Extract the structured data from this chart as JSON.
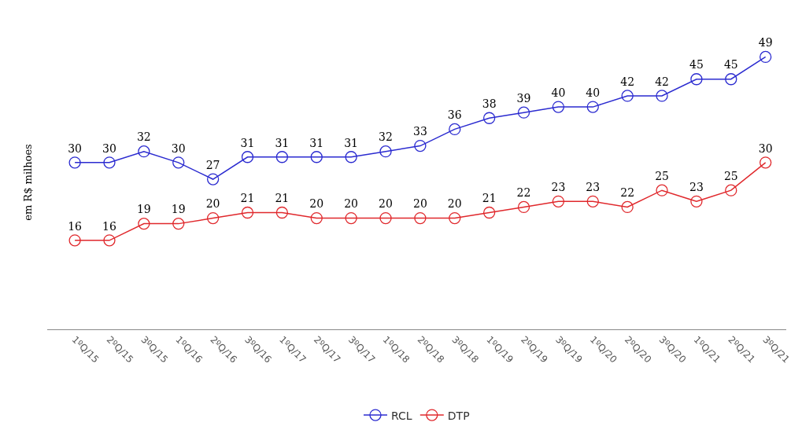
{
  "chart_data": {
    "type": "line",
    "ylabel": "em R$ milhoes",
    "categories": [
      "1ºQ/15",
      "2ºQ/15",
      "3ºQ/15",
      "1ºQ/16",
      "2ºQ/16",
      "3ºQ/16",
      "1ºQ/17",
      "2ºQ/17",
      "3ºQ/17",
      "1ºQ/18",
      "2ºQ/18",
      "3ºQ/18",
      "1ºQ/19",
      "2ºQ/19",
      "3ºQ/19",
      "1ºQ/20",
      "2ºQ/20",
      "3ºQ/20",
      "1ºQ/21",
      "2ºQ/21",
      "3ºQ/21"
    ],
    "series": [
      {
        "name": "RCL",
        "color": "#2b2bd0",
        "values": [
          30,
          30,
          32,
          30,
          27,
          31,
          31,
          31,
          31,
          32,
          33,
          36,
          38,
          39,
          40,
          40,
          42,
          42,
          45,
          45,
          49
        ]
      },
      {
        "name": "DTP",
        "color": "#e0282c",
        "values": [
          16,
          16,
          19,
          19,
          20,
          21,
          21,
          20,
          20,
          20,
          20,
          20,
          21,
          22,
          23,
          23,
          22,
          25,
          23,
          25,
          30
        ]
      }
    ],
    "data_labels": true,
    "legend": "bottom",
    "marker": "circle",
    "line_style": "solid"
  }
}
